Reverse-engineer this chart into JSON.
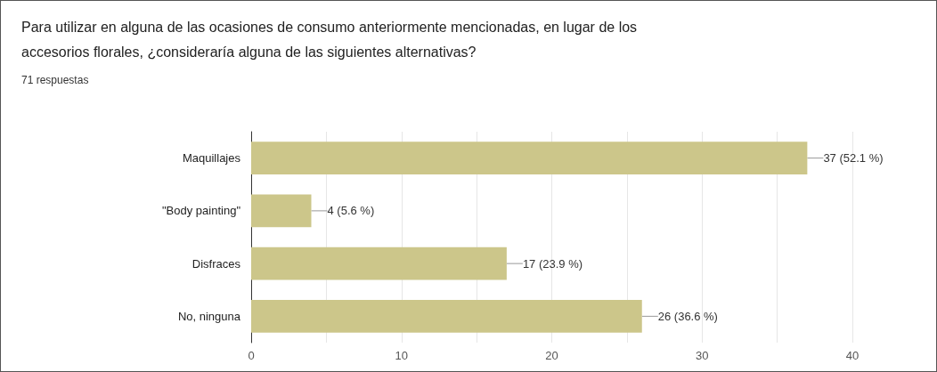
{
  "chart_data": {
    "type": "bar",
    "orientation": "horizontal",
    "title": "Para utilizar en alguna de las ocasiones de consumo anteriormente mencionadas, en lugar de los accesorios florales, ¿consideraría alguna de las siguientes alternativas?",
    "subtitle": "71 respuestas",
    "categories": [
      "Maquillajes",
      "\"Body painting\"",
      "Disfraces",
      "No, ninguna"
    ],
    "values": [
      37,
      4,
      17,
      26
    ],
    "value_labels": [
      "37 (52.1 %)",
      "4 (5.6 %)",
      "17 (23.9 %)",
      "26 (36.6 %)"
    ],
    "color": "#ccc68a",
    "xlim": [
      0,
      40
    ],
    "xticks": [
      0,
      {
        "value": 5,
        "label": null
      },
      10,
      {
        "value": 15,
        "label": null
      },
      20,
      {
        "value": 25,
        "label": null
      },
      30,
      {
        "value": 35,
        "label": null
      },
      40
    ],
    "grid": "x"
  }
}
